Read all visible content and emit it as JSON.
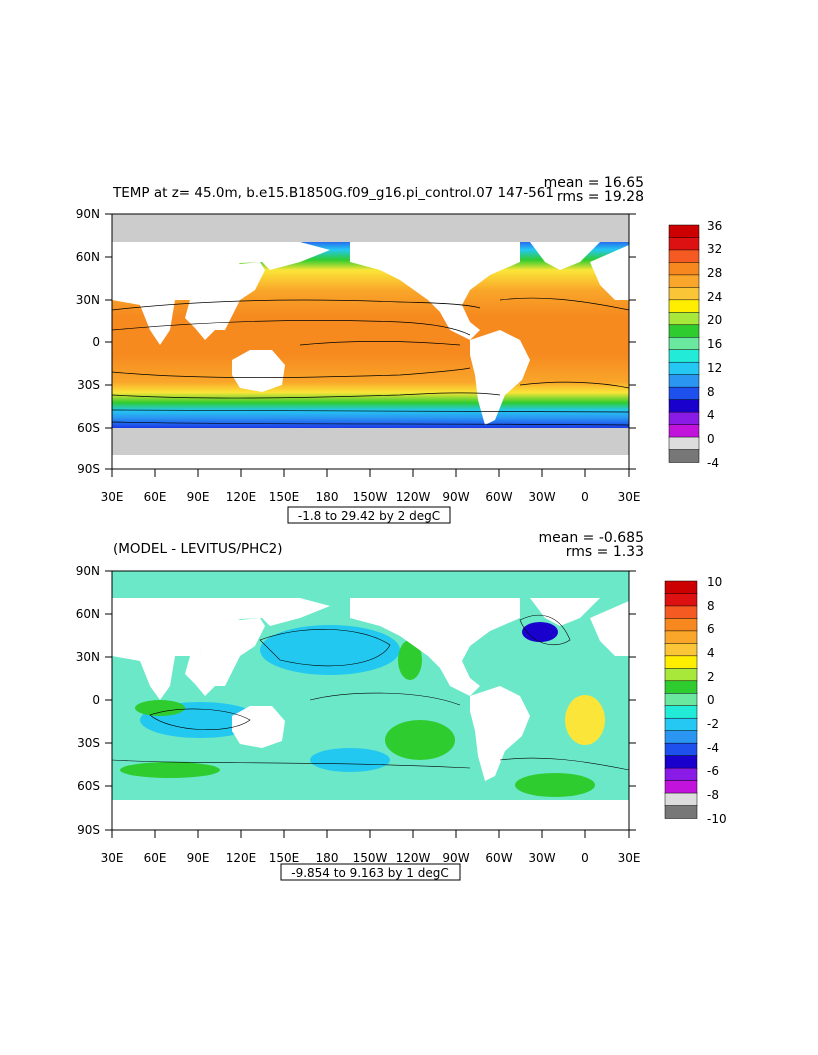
{
  "panels": [
    {
      "id": "top",
      "title": "TEMP at z=  45.0m, b.e15.B1850G.f09_g16.pi_control.07 147-561",
      "mean_label": "mean = 16.65",
      "rms_label": "rms = 19.28",
      "range_label": "-1.8 to 29.42 by 2 degC",
      "lat_ticks": [
        "90N",
        "60N",
        "30N",
        "0",
        "30S",
        "60S",
        "90S"
      ],
      "lon_ticks": [
        "30E",
        "60E",
        "90E",
        "120E",
        "150E",
        "180",
        "150W",
        "120W",
        "90W",
        "60W",
        "30W",
        "0",
        "30E"
      ],
      "colorbar_labels": [
        "36",
        "32",
        "28",
        "24",
        "20",
        "16",
        "12",
        "8",
        "4",
        "0",
        "-4"
      ],
      "colorbar_colors": [
        "#cc0000",
        "#dd1111",
        "#f45a22",
        "#f7881f",
        "#f9a62a",
        "#fbc538",
        "#ffee00",
        "#a8e83a",
        "#2fcc2f",
        "#6be8a0",
        "#22ecd8",
        "#25c8f2",
        "#2a96f2",
        "#1e50ee",
        "#1a00cc",
        "#8a1ae6",
        "#c213dd",
        "#dddddd",
        "#777777"
      ],
      "colorbar_bottom_gray": "#777777",
      "land_color": "#ffffff",
      "ice_color": "#cccccc"
    },
    {
      "id": "bottom",
      "title": "(MODEL - LEVITUS/PHC2)",
      "mean_label": "mean = -0.685",
      "rms_label": "rms = 1.33",
      "range_label": "-9.854 to 9.163 by 1 degC",
      "lat_ticks": [
        "90N",
        "60N",
        "30N",
        "0",
        "30S",
        "60S",
        "90S"
      ],
      "lon_ticks": [
        "30E",
        "60E",
        "90E",
        "120E",
        "150E",
        "180",
        "150W",
        "120W",
        "90W",
        "60W",
        "30W",
        "0",
        "30E"
      ],
      "colorbar_labels": [
        "10",
        "8",
        "6",
        "4",
        "2",
        "0",
        "-2",
        "-4",
        "-6",
        "-8",
        "-10"
      ],
      "colorbar_colors": [
        "#cc0000",
        "#dd1111",
        "#f45a22",
        "#f7881f",
        "#f9a62a",
        "#fbc538",
        "#ffee00",
        "#a8e83a",
        "#2fcc2f",
        "#6be8a0",
        "#22ecd8",
        "#25c8f2",
        "#2a96f2",
        "#1e50ee",
        "#1a00cc",
        "#8a1ae6",
        "#c213dd",
        "#dddddd",
        "#777777"
      ],
      "land_color": "#ffffff",
      "ice_color": "#cccccc"
    }
  ]
}
